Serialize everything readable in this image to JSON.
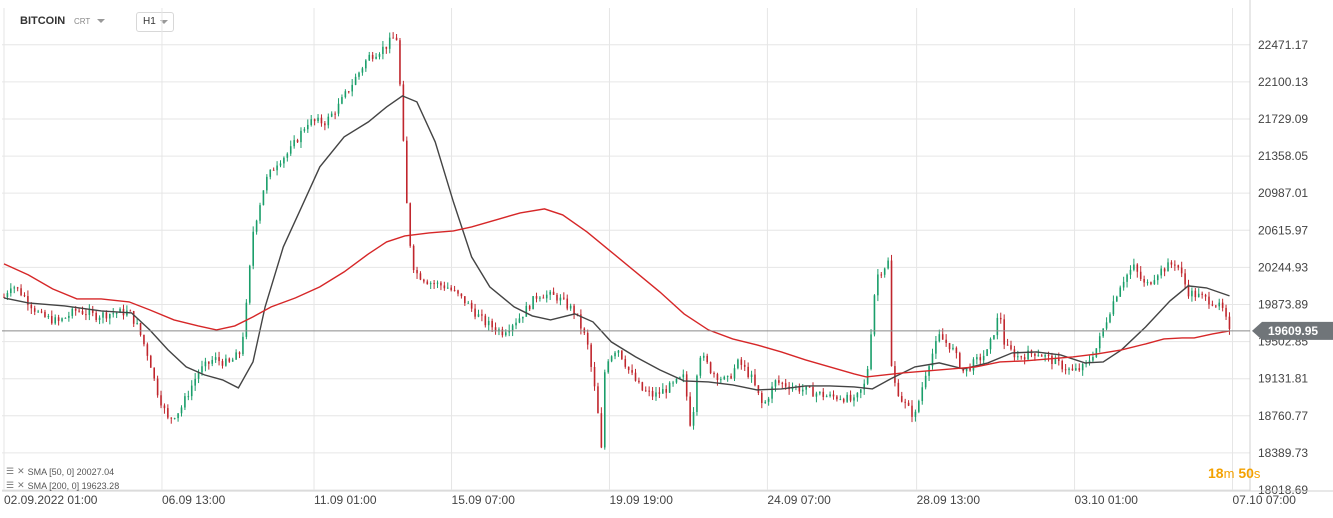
{
  "header": {
    "symbol": "BITCOIN",
    "subtype": "CRT",
    "timeframe": "H1"
  },
  "current_price_label": "19609.95",
  "legend": [
    {
      "text": "SMA [50, 0] 20027.04",
      "color": "#444444"
    },
    {
      "text": "SMA [200, 0] 19623.28",
      "color": "#d62728"
    }
  ],
  "timer": {
    "minutes": "18",
    "m_unit": "m",
    "seconds": "50",
    "s_unit": "s"
  },
  "colors": {
    "up": "#1a9e6a",
    "down": "#c0262d",
    "sma50": "#444444",
    "sma200": "#d62728",
    "grid": "#e6e6e6",
    "price_line": "#8a8a8a"
  },
  "chart_data": {
    "type": "candlestick",
    "title": "",
    "xlabel": "",
    "ylabel": "",
    "ylim": [
      18018.69,
      22660
    ],
    "grid": true,
    "y_ticks": [
      "22471.17",
      "22100.13",
      "21729.09",
      "21358.05",
      "20987.01",
      "20615.97",
      "20244.93",
      "19873.89",
      "19502.85",
      "19131.81",
      "18760.77",
      "18389.73",
      "18018.69"
    ],
    "x_ticks": [
      "02.09.2022 01:00",
      "06.09 13:00",
      "11.09 01:00",
      "15.09 07:00",
      "19.09 19:00",
      "24.09 07:00",
      "28.09 13:00",
      "03.10 01:00",
      "07.10 07:00"
    ],
    "x_range": [
      "02.09.2022 01:00",
      "07.10 08:00"
    ],
    "current_price": 19609.95,
    "close_path": [
      [
        0,
        19950
      ],
      [
        0.6,
        20080
      ],
      [
        1.5,
        19980
      ],
      [
        3,
        19760
      ],
      [
        4.5,
        19700
      ],
      [
        6,
        19820
      ],
      [
        7.5,
        19760
      ],
      [
        9,
        19790
      ],
      [
        10.3,
        19800
      ],
      [
        11,
        19650
      ],
      [
        12,
        19320
      ],
      [
        12.5,
        19050
      ],
      [
        13.5,
        18720
      ],
      [
        14.5,
        18820
      ],
      [
        16,
        19200
      ],
      [
        17.3,
        19330
      ],
      [
        18.5,
        19280
      ],
      [
        19.5,
        19400
      ],
      [
        20,
        19900
      ],
      [
        20.5,
        20600
      ],
      [
        21.5,
        21100
      ],
      [
        22.5,
        21300
      ],
      [
        23.5,
        21400
      ],
      [
        25,
        21700
      ],
      [
        26.5,
        21700
      ],
      [
        27.5,
        21850
      ],
      [
        28.5,
        22050
      ],
      [
        30,
        22350
      ],
      [
        31.4,
        22450
      ],
      [
        32.3,
        22570
      ],
      [
        32.7,
        21900
      ],
      [
        33,
        21200
      ],
      [
        33.3,
        20600
      ],
      [
        33.8,
        20200
      ],
      [
        35,
        20100
      ],
      [
        36.5,
        20050
      ],
      [
        38,
        19900
      ],
      [
        39.5,
        19700
      ],
      [
        41,
        19600
      ],
      [
        42.5,
        19750
      ],
      [
        44,
        19980
      ],
      [
        45.5,
        19950
      ],
      [
        47,
        19800
      ],
      [
        48,
        19500
      ],
      [
        48.8,
        18900
      ],
      [
        49.2,
        18400
      ],
      [
        49.5,
        19300
      ],
      [
        50.5,
        19450
      ],
      [
        51.5,
        19200
      ],
      [
        52.5,
        19020
      ],
      [
        53.5,
        18960
      ],
      [
        55,
        19060
      ],
      [
        56,
        19150
      ],
      [
        56.6,
        18600
      ],
      [
        57.2,
        19400
      ],
      [
        58.3,
        19200
      ],
      [
        59.5,
        19100
      ],
      [
        60.5,
        19300
      ],
      [
        61.5,
        19150
      ],
      [
        62.5,
        18850
      ],
      [
        63.5,
        19100
      ],
      [
        65,
        19050
      ],
      [
        66.5,
        19000
      ],
      [
        68,
        18950
      ],
      [
        69,
        18950
      ],
      [
        70,
        18900
      ],
      [
        71,
        19100
      ],
      [
        71.8,
        20150
      ],
      [
        72.8,
        20300
      ],
      [
        73.1,
        19150
      ],
      [
        74,
        18900
      ],
      [
        75,
        18750
      ],
      [
        76,
        19250
      ],
      [
        77,
        19550
      ],
      [
        78,
        19450
      ],
      [
        79,
        19200
      ],
      [
        80,
        19300
      ],
      [
        81,
        19400
      ],
      [
        82,
        19800
      ],
      [
        82.4,
        19450
      ],
      [
        83.5,
        19350
      ],
      [
        85,
        19400
      ],
      [
        86.5,
        19300
      ],
      [
        88,
        19200
      ],
      [
        89,
        19250
      ],
      [
        90,
        19450
      ],
      [
        91,
        19800
      ],
      [
        92,
        20100
      ],
      [
        93,
        20250
      ],
      [
        94,
        20050
      ],
      [
        95,
        20200
      ],
      [
        96.5,
        20300
      ],
      [
        97.5,
        20000
      ],
      [
        98.5,
        19950
      ],
      [
        99.6,
        19900
      ],
      [
        100.4,
        19810
      ],
      [
        100.9,
        19590
      ]
    ],
    "series": [
      {
        "name": "SMA [50, 0]",
        "last": 20027.04,
        "values": [
          [
            0,
            19940
          ],
          [
            2,
            19890
          ],
          [
            5,
            19860
          ],
          [
            8,
            19810
          ],
          [
            10.5,
            19790
          ],
          [
            12,
            19620
          ],
          [
            13.5,
            19420
          ],
          [
            15,
            19250
          ],
          [
            16.5,
            19170
          ],
          [
            18,
            19120
          ],
          [
            19.3,
            19040
          ],
          [
            20.5,
            19300
          ],
          [
            21.5,
            19850
          ],
          [
            23,
            20450
          ],
          [
            24.5,
            20850
          ],
          [
            26,
            21250
          ],
          [
            28,
            21550
          ],
          [
            30,
            21700
          ],
          [
            31.5,
            21850
          ],
          [
            32.8,
            21960
          ],
          [
            34,
            21900
          ],
          [
            35.5,
            21500
          ],
          [
            37,
            20900
          ],
          [
            38.5,
            20350
          ],
          [
            40,
            20050
          ],
          [
            42,
            19850
          ],
          [
            43.5,
            19760
          ],
          [
            45,
            19720
          ],
          [
            47,
            19780
          ],
          [
            48.5,
            19700
          ],
          [
            50,
            19500
          ],
          [
            52,
            19350
          ],
          [
            54,
            19220
          ],
          [
            56,
            19110
          ],
          [
            58,
            19100
          ],
          [
            60,
            19070
          ],
          [
            62,
            19020
          ],
          [
            64,
            19030
          ],
          [
            66,
            19060
          ],
          [
            68,
            19060
          ],
          [
            70,
            19050
          ],
          [
            71.5,
            19030
          ],
          [
            73,
            19130
          ],
          [
            75,
            19250
          ],
          [
            77,
            19290
          ],
          [
            79,
            19230
          ],
          [
            81,
            19290
          ],
          [
            83,
            19390
          ],
          [
            85,
            19400
          ],
          [
            87,
            19370
          ],
          [
            89,
            19290
          ],
          [
            90.5,
            19300
          ],
          [
            92,
            19420
          ],
          [
            94,
            19650
          ],
          [
            96,
            19910
          ],
          [
            97.5,
            20060
          ],
          [
            99,
            20040
          ],
          [
            100.9,
            19960
          ]
        ]
      },
      {
        "name": "SMA [200, 0]",
        "last": 19623.28,
        "values": [
          [
            0,
            20280
          ],
          [
            2,
            20170
          ],
          [
            4,
            20030
          ],
          [
            6,
            19930
          ],
          [
            8,
            19930
          ],
          [
            10.3,
            19900
          ],
          [
            12,
            19820
          ],
          [
            14,
            19720
          ],
          [
            16,
            19660
          ],
          [
            17.5,
            19620
          ],
          [
            19,
            19660
          ],
          [
            20.5,
            19750
          ],
          [
            22,
            19850
          ],
          [
            24,
            19940
          ],
          [
            26,
            20050
          ],
          [
            28,
            20200
          ],
          [
            30,
            20380
          ],
          [
            31.5,
            20500
          ],
          [
            33,
            20560
          ],
          [
            35,
            20590
          ],
          [
            37,
            20610
          ],
          [
            38.5,
            20650
          ],
          [
            40.5,
            20720
          ],
          [
            42.5,
            20790
          ],
          [
            44.5,
            20830
          ],
          [
            46,
            20770
          ],
          [
            48,
            20600
          ],
          [
            50,
            20400
          ],
          [
            52,
            20200
          ],
          [
            54,
            20000
          ],
          [
            56,
            19780
          ],
          [
            58,
            19620
          ],
          [
            60,
            19530
          ],
          [
            62,
            19470
          ],
          [
            64,
            19400
          ],
          [
            66,
            19320
          ],
          [
            68,
            19250
          ],
          [
            70,
            19180
          ],
          [
            71,
            19150
          ],
          [
            72.5,
            19170
          ],
          [
            74,
            19190
          ],
          [
            76,
            19210
          ],
          [
            78,
            19230
          ],
          [
            80,
            19250
          ],
          [
            82,
            19300
          ],
          [
            84,
            19310
          ],
          [
            86,
            19330
          ],
          [
            88,
            19350
          ],
          [
            90,
            19380
          ],
          [
            92,
            19420
          ],
          [
            94,
            19480
          ],
          [
            95.5,
            19530
          ],
          [
            97,
            19540
          ],
          [
            98,
            19540
          ],
          [
            99.5,
            19580
          ],
          [
            100.9,
            19610
          ]
        ]
      }
    ]
  }
}
